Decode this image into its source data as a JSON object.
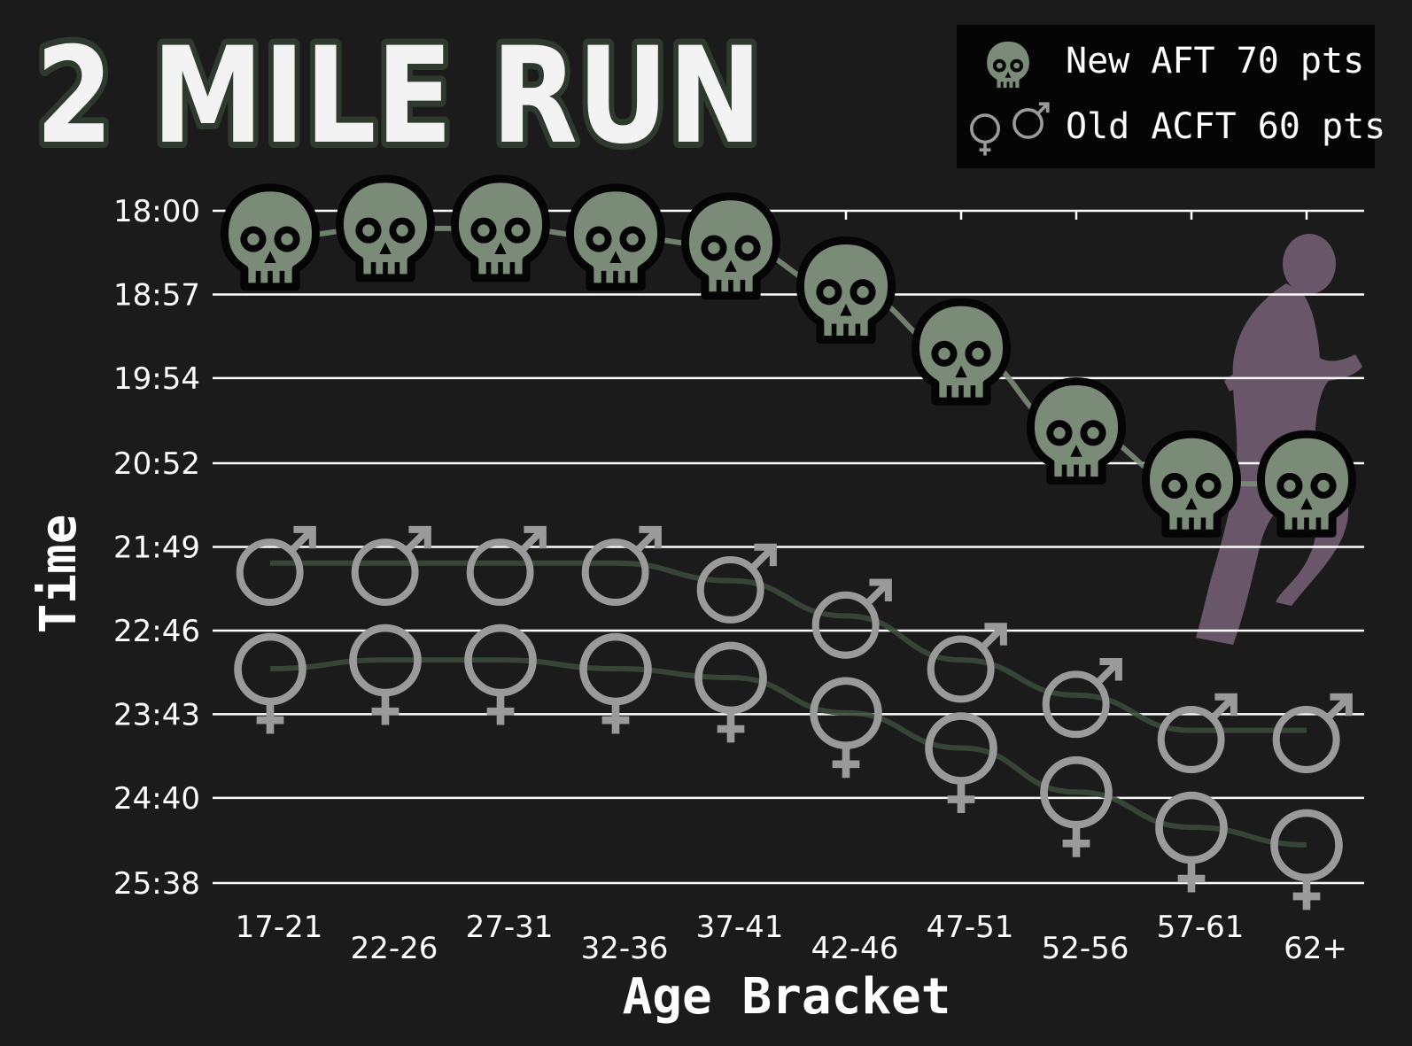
{
  "title": "2 MILE RUN",
  "legend": {
    "new_label": "New AFT 70 pts",
    "old_label": "Old ACFT 60 pts",
    "new_icon": "skull-icon",
    "old_icon": "gender-symbols-icon"
  },
  "colors": {
    "background": "#1b1b1b",
    "skull": "#7a8c77",
    "new_line": "#7a8c77",
    "old_line": "#3a4a3a",
    "gender_symbol": "#9a9a9a",
    "runner": "#6e5a6e",
    "title_outline": "#2e3a2e"
  },
  "chart_data": {
    "type": "line",
    "xlabel": "Age Bracket",
    "ylabel": "Time",
    "y_axis_inverted": true,
    "y_ticks": [
      "18:00",
      "18:57",
      "19:54",
      "20:52",
      "21:49",
      "22:46",
      "23:43",
      "24:40",
      "25:38"
    ],
    "ylim": [
      "18:00",
      "25:38"
    ],
    "categories": [
      "17-21",
      "22-26",
      "27-31",
      "32-36",
      "37-41",
      "42-46",
      "47-51",
      "52-56",
      "57-61",
      "62+"
    ],
    "grid": true,
    "legend_position": "top-right",
    "series": [
      {
        "name": "New AFT 70 pts",
        "marker": "skull",
        "values": [
          "18:18",
          "18:12",
          "18:12",
          "18:18",
          "18:24",
          "18:54",
          "19:36",
          "20:30",
          "21:06",
          "21:06"
        ]
      },
      {
        "name": "Old ACFT 60 pts (male)",
        "marker": "male",
        "values": [
          "22:00",
          "22:00",
          "22:00",
          "22:00",
          "22:12",
          "22:36",
          "23:06",
          "23:30",
          "23:54",
          "23:54"
        ]
      },
      {
        "name": "Old ACFT 60 pts (female)",
        "marker": "female",
        "values": [
          "23:12",
          "23:06",
          "23:06",
          "23:12",
          "23:18",
          "23:42",
          "24:06",
          "24:36",
          "25:00",
          "25:12"
        ]
      }
    ]
  }
}
